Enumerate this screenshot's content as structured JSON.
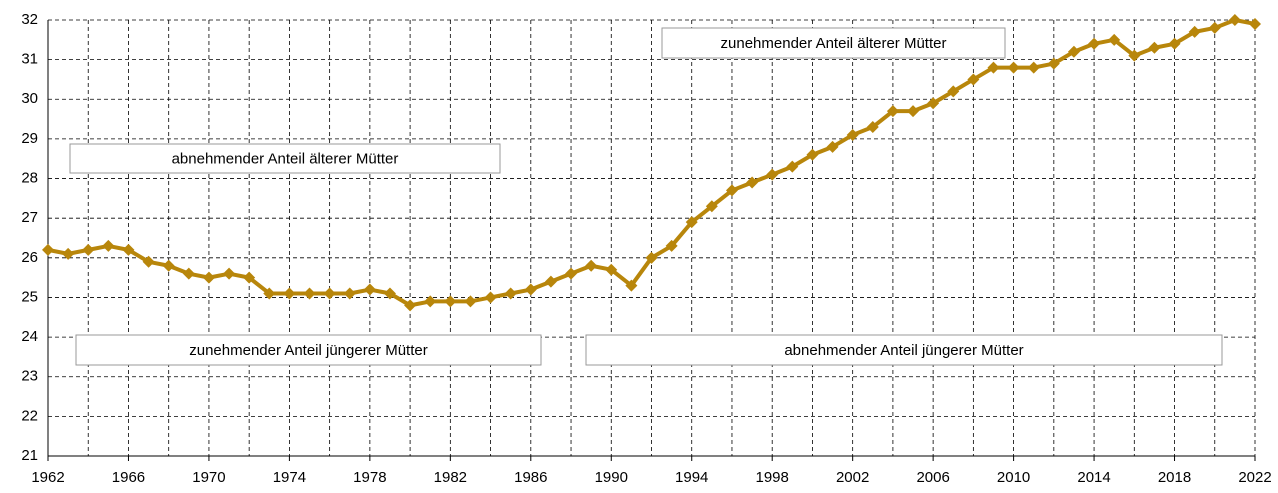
{
  "chart_data": {
    "type": "line",
    "x": [
      1962,
      1963,
      1964,
      1965,
      1966,
      1967,
      1968,
      1969,
      1970,
      1971,
      1972,
      1973,
      1974,
      1975,
      1976,
      1977,
      1978,
      1979,
      1980,
      1981,
      1982,
      1983,
      1984,
      1985,
      1986,
      1987,
      1988,
      1989,
      1990,
      1991,
      1992,
      1993,
      1994,
      1995,
      1996,
      1997,
      1998,
      1999,
      2000,
      2001,
      2002,
      2003,
      2004,
      2005,
      2006,
      2007,
      2008,
      2009,
      2010,
      2011,
      2012,
      2013,
      2014,
      2015,
      2016,
      2017,
      2018,
      2019,
      2020,
      2021,
      2022
    ],
    "series": [
      {
        "color": "#b8860b",
        "values": [
          26.2,
          26.1,
          26.2,
          26.3,
          26.2,
          25.9,
          25.8,
          25.6,
          25.5,
          25.6,
          25.5,
          25.1,
          25.1,
          25.1,
          25.1,
          25.1,
          25.2,
          25.1,
          24.8,
          24.9,
          24.9,
          24.9,
          25.0,
          25.1,
          25.2,
          25.4,
          25.6,
          25.8,
          25.7,
          25.3,
          26.0,
          26.3,
          26.9,
          27.3,
          27.7,
          27.9,
          28.1,
          28.3,
          28.6,
          28.8,
          29.1,
          29.3,
          29.7,
          29.7,
          29.9,
          30.2,
          30.5,
          30.8,
          30.8,
          30.8,
          30.9,
          31.2,
          31.4,
          31.5,
          31.1,
          31.3,
          31.4,
          31.7,
          31.8,
          32.0,
          31.9
        ]
      }
    ],
    "xlim": [
      1962,
      2022
    ],
    "xticks": [
      1962,
      1966,
      1970,
      1974,
      1978,
      1982,
      1986,
      1990,
      1994,
      1998,
      2002,
      2006,
      2010,
      2014,
      2018,
      2022
    ],
    "xminor_ticks": [
      1964,
      1968,
      1972,
      1976,
      1980,
      1984,
      1988,
      1992,
      1996,
      2000,
      2004,
      2008,
      2012,
      2016,
      2020
    ],
    "ylim": [
      21,
      32
    ],
    "yticks": [
      21,
      22,
      23,
      24,
      25,
      26,
      27,
      28,
      29,
      30,
      31,
      32
    ],
    "grid": true,
    "annotations": [
      "zunehmender Anteil älterer Mütter",
      "abnehmender Anteil älterer Mütter",
      "zunehmender Anteil jüngerer Mütter",
      "abnehmender Anteil jüngerer Mütter"
    ]
  }
}
